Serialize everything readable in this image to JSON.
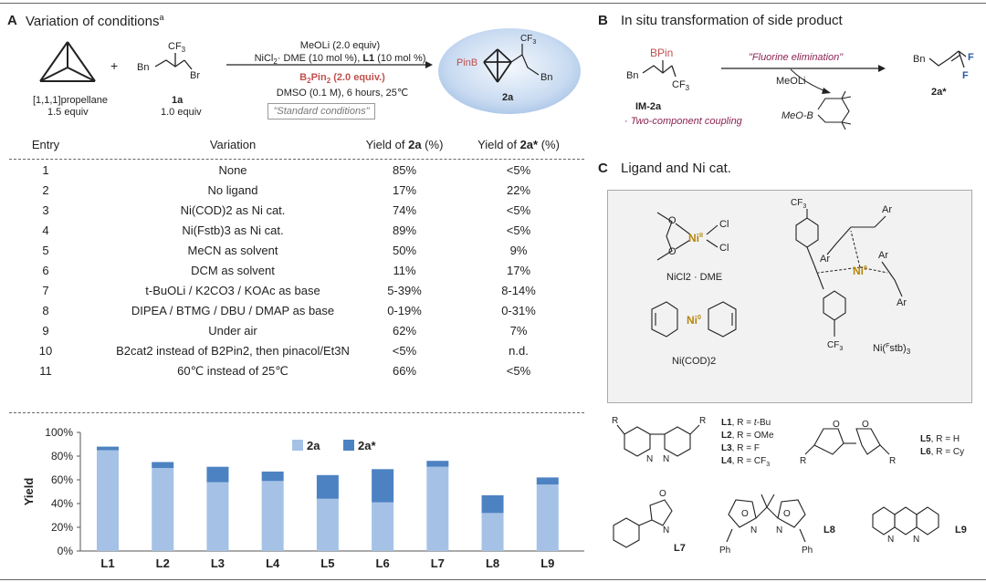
{
  "panel_a": {
    "label": "A",
    "title": "Variation of conditions",
    "title_sup": "a",
    "reagent1_name": "[1,1,1]propellane",
    "reagent1_equiv": "1.5 equiv",
    "plus": "+",
    "reagent2_id": "1a",
    "reagent2_equiv": "1.0 equiv",
    "cond_line1": "MeOLi (2.0 equiv)",
    "cond_line2": "NiCl2· DME (10 mol %), L1 (10 mol %)",
    "cond_line3": "B2Pin2 (2.0 equiv.)",
    "cond_line4": "DMSO (0.1 M), 6 hours, 25℃",
    "std_conditions": "\"Standard conditions\"",
    "product_id": "2a",
    "product_pinb": "PinB",
    "atom_cf3": "CF3",
    "atom_bn": "Bn",
    "atom_br": "Br"
  },
  "table": {
    "headers": [
      "Entry",
      "Variation",
      "Yield of 2a (%)",
      "Yield of 2a* (%)"
    ],
    "rows": [
      [
        "1",
        "None",
        "85%",
        "<5%"
      ],
      [
        "2",
        "No ligand",
        "17%",
        "22%"
      ],
      [
        "3",
        "Ni(COD)2 as Ni cat.",
        "74%",
        "<5%"
      ],
      [
        "4",
        "Ni(Fstb)3 as Ni cat.",
        "89%",
        "<5%"
      ],
      [
        "5",
        "MeCN as solvent",
        "50%",
        "9%"
      ],
      [
        "6",
        "DCM as solvent",
        "11%",
        "17%"
      ],
      [
        "7",
        "t-BuOLi / K2CO3 / KOAc as base",
        "5-39%",
        "8-14%"
      ],
      [
        "8",
        "DIPEA / BTMG / DBU / DMAP as base",
        "0-19%",
        "0-31%"
      ],
      [
        "9",
        "Under air",
        "62%",
        "7%"
      ],
      [
        "10",
        "B2cat2 instead of B2Pin2, then pinacol/Et3N",
        "<5%",
        "n.d."
      ],
      [
        "11",
        "60℃ instead of 25℃",
        "66%",
        "<5%"
      ]
    ]
  },
  "chart_data": {
    "type": "bar",
    "stacked": true,
    "categories": [
      "L1",
      "L2",
      "L3",
      "L4",
      "L5",
      "L6",
      "L7",
      "L8",
      "L9"
    ],
    "series": [
      {
        "name": "2a",
        "values": [
          85,
          70,
          58,
          59,
          44,
          41,
          71,
          32,
          56
        ],
        "color": "#a5c2e6"
      },
      {
        "name": "2a*",
        "values": [
          3,
          5,
          13,
          8,
          20,
          28,
          5,
          15,
          6
        ],
        "color": "#4d82c2"
      }
    ],
    "ylabel": "Yield",
    "yticks": [
      "0%",
      "20%",
      "40%",
      "60%",
      "80%",
      "100%"
    ],
    "ylim": [
      0,
      100
    ],
    "legend_position": "top-center"
  },
  "panel_b": {
    "label": "B",
    "title": "In situ transformation of side product",
    "bpin": "BPin",
    "bn": "Bn",
    "cf3": "CF3",
    "intermediate_id": "IM-2a",
    "note": "· Two-component coupling",
    "arrow_label": "\"Fluorine elimination\"",
    "reagent": "MeOLi",
    "byproduct": "MeO–B",
    "product_id": "2a*",
    "f": "F"
  },
  "panel_c": {
    "label": "C",
    "title": "Ligand and Ni cat.",
    "nicl2_label": "NiCl2 · DME",
    "nicod_label": "Ni(COD)2",
    "nistb_label": "Ni(Fstb)3",
    "ni_ii": "NiII",
    "ni_0": "Ni0",
    "cl": "Cl",
    "ar": "Ar",
    "l_bipy": [
      "L1, R = t-Bu",
      "L2, R = OMe",
      "L3, R = F",
      "L4, R = CF3"
    ],
    "l_box": [
      "L5, R = H",
      "L6, R = Cy"
    ],
    "l7": "L7",
    "l8": "L8",
    "l9": "L9",
    "ph": "Ph",
    "r": "R"
  }
}
